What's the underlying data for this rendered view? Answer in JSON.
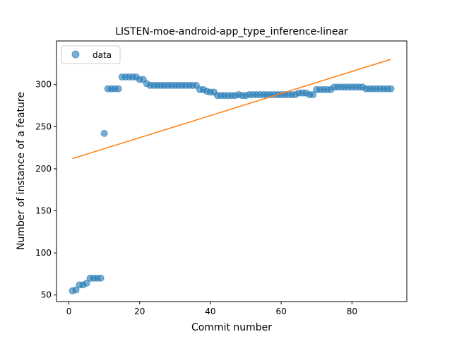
{
  "chart_data": {
    "type": "scatter",
    "title": "LISTEN-moe-android-app_type_inference-linear",
    "xlabel": "Commit number",
    "ylabel": "Number of instance of a feature",
    "xlim": [
      -3.5,
      95.5
    ],
    "ylim": [
      42.2,
      351.8
    ],
    "xticks": [
      0,
      20,
      40,
      60,
      80
    ],
    "xtick_labels": [
      "0",
      "20",
      "40",
      "60",
      "80"
    ],
    "yticks": [
      50,
      100,
      150,
      200,
      250,
      300
    ],
    "ytick_labels": [
      "50",
      "100",
      "150",
      "200",
      "250",
      "300"
    ],
    "grid": false,
    "legend": {
      "position": "top-left",
      "entries": [
        "data"
      ]
    },
    "colors": {
      "data": "#1f77b4",
      "fit": "#ff7f0e"
    },
    "series": [
      {
        "name": "data",
        "kind": "scatter",
        "x": [
          1,
          2,
          3,
          4,
          5,
          6,
          7,
          8,
          9,
          10,
          11,
          12,
          13,
          14,
          15,
          16,
          17,
          18,
          19,
          20,
          21,
          22,
          23,
          24,
          25,
          26,
          27,
          28,
          29,
          30,
          31,
          32,
          33,
          34,
          35,
          36,
          37,
          38,
          39,
          40,
          41,
          42,
          43,
          44,
          45,
          46,
          47,
          48,
          49,
          50,
          51,
          52,
          53,
          54,
          55,
          56,
          57,
          58,
          59,
          60,
          61,
          62,
          63,
          64,
          65,
          66,
          67,
          68,
          69,
          70,
          71,
          72,
          73,
          74,
          75,
          76,
          77,
          78,
          79,
          80,
          81,
          82,
          83,
          84,
          85,
          86,
          87,
          88,
          89,
          90,
          91
        ],
        "y": [
          55,
          56,
          62,
          62,
          64,
          70,
          70,
          70,
          70,
          242,
          295,
          295,
          295,
          295,
          309,
          309,
          309,
          309,
          309,
          306,
          306,
          301,
          299,
          299,
          299,
          299,
          299,
          299,
          299,
          299,
          299,
          299,
          299,
          299,
          299,
          299,
          294,
          294,
          292,
          291,
          291,
          287,
          287,
          287,
          287,
          287,
          287,
          288,
          287,
          287,
          288,
          288,
          288,
          288,
          288,
          288,
          288,
          288,
          288,
          288,
          288,
          288,
          288,
          288,
          290,
          290,
          290,
          288,
          288,
          294,
          294,
          294,
          294,
          294,
          297,
          297,
          297,
          297,
          297,
          297,
          297,
          297,
          297,
          295,
          295,
          295,
          295,
          295,
          295,
          295,
          295
        ]
      },
      {
        "kind": "line",
        "x": [
          1,
          91
        ],
        "y": [
          212,
          330
        ]
      }
    ]
  }
}
